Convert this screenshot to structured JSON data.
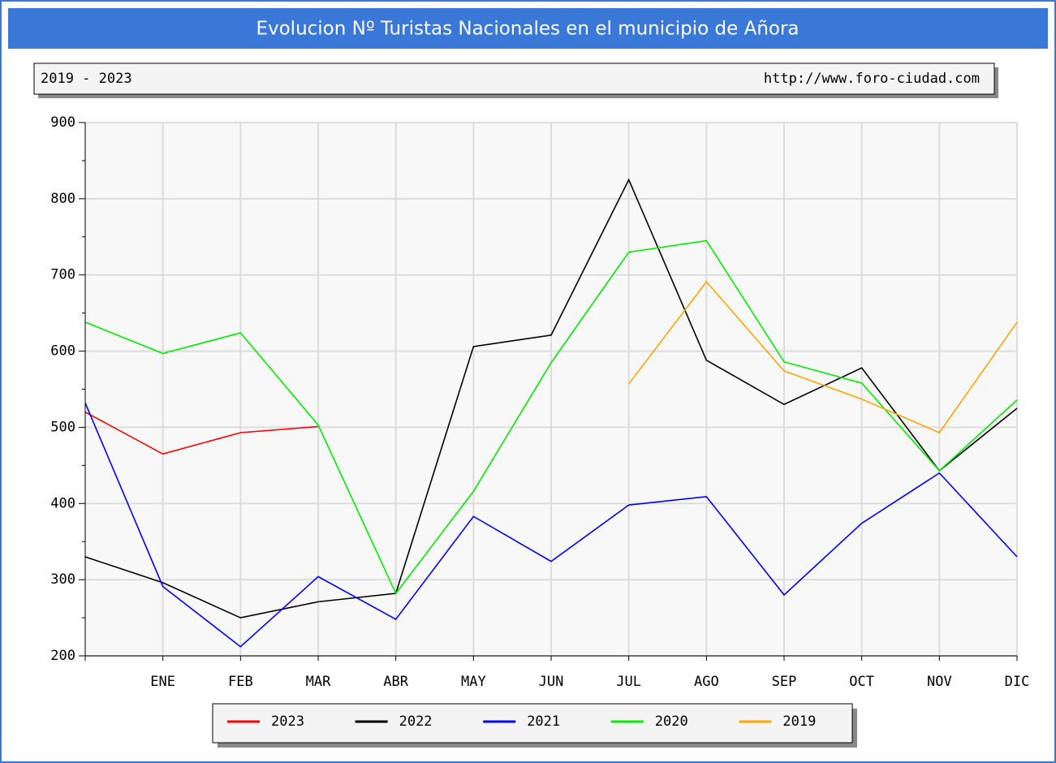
{
  "chart_data": {
    "type": "line",
    "title": "Evolucion Nº Turistas Nacionales en el municipio de Añora",
    "subtitle": "2019 - 2023",
    "source": "http://www.foro-ciudad.com",
    "categories": [
      null,
      "ENE",
      "FEB",
      "MAR",
      "ABR",
      "MAY",
      "JUN",
      "JUL",
      "AGO",
      "SEP",
      "OCT",
      "NOV",
      "DIC"
    ],
    "ylim": [
      200,
      900
    ],
    "yticks": [
      200,
      300,
      400,
      500,
      600,
      700,
      800,
      900
    ],
    "grid": true,
    "series": [
      {
        "name": "2023",
        "color": "#ff0000",
        "values": [
          520,
          465,
          493,
          501,
          null,
          null,
          null,
          null,
          null,
          null,
          null,
          null,
          null
        ]
      },
      {
        "name": "2022",
        "color": "#000000",
        "values": [
          330,
          296,
          250,
          271,
          282,
          606,
          621,
          825,
          588,
          530,
          578,
          443,
          525
        ]
      },
      {
        "name": "2021",
        "color": "#0000ff",
        "values": [
          532,
          291,
          212,
          304,
          248,
          383,
          324,
          398,
          409,
          280,
          374,
          440,
          330
        ]
      },
      {
        "name": "2020",
        "color": "#00ee00",
        "values": [
          638,
          597,
          624,
          503,
          282,
          416,
          585,
          730,
          745,
          586,
          558,
          443,
          536
        ]
      },
      {
        "name": "2019",
        "color": "#ffa500",
        "values": [
          null,
          null,
          null,
          null,
          null,
          null,
          null,
          557,
          691,
          574,
          537,
          493,
          638
        ]
      }
    ]
  }
}
